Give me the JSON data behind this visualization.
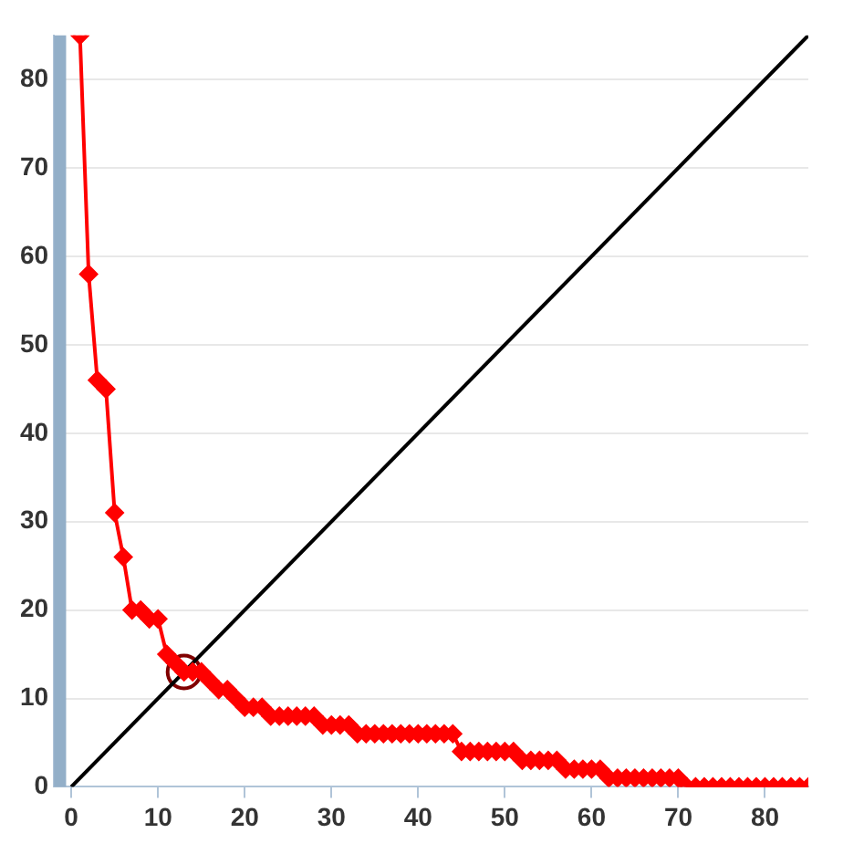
{
  "chart_data": {
    "type": "line",
    "xlim": [
      -2,
      85
    ],
    "ylim": [
      0,
      85
    ],
    "xticks": [
      0,
      10,
      20,
      30,
      40,
      50,
      60,
      70,
      80
    ],
    "yticks": [
      0,
      10,
      20,
      30,
      40,
      50,
      60,
      70,
      80
    ],
    "grid": "y",
    "legend": false,
    "marker": "diamond",
    "bands": [
      {
        "axis": "x",
        "from": -2,
        "to": -0.6,
        "color": "#93afc8"
      }
    ],
    "series": [
      {
        "color": "#ff0000",
        "x": [
          1,
          2,
          3,
          4,
          5,
          6,
          7,
          8,
          9,
          10,
          11,
          12,
          13,
          14,
          15,
          16,
          17,
          18,
          19,
          20,
          21,
          22,
          23,
          24,
          25,
          26,
          27,
          28,
          29,
          30,
          31,
          32,
          33,
          34,
          35,
          36,
          37,
          38,
          39,
          40,
          41,
          42,
          43,
          44,
          45,
          46,
          47,
          48,
          49,
          50,
          51,
          52,
          53,
          54,
          55,
          56,
          57,
          58,
          59,
          60,
          61,
          62,
          63,
          64,
          65,
          66,
          67,
          68,
          69,
          70,
          71,
          72,
          73,
          74,
          75,
          76,
          77,
          78,
          79,
          80,
          81,
          82,
          83,
          84,
          85
        ],
        "values": [
          85,
          58,
          46,
          45,
          31,
          26,
          20,
          20,
          19,
          19,
          15,
          14,
          13,
          13,
          13,
          12,
          11,
          11,
          10,
          9,
          9,
          9,
          8,
          8,
          8,
          8,
          8,
          8,
          7,
          7,
          7,
          7,
          6,
          6,
          6,
          6,
          6,
          6,
          6,
          6,
          6,
          6,
          6,
          6,
          4,
          4,
          4,
          4,
          4,
          4,
          4,
          3,
          3,
          3,
          3,
          3,
          2,
          2,
          2,
          2,
          2,
          1,
          1,
          1,
          1,
          1,
          1,
          1,
          1,
          1,
          0,
          0,
          0,
          0,
          0,
          0,
          0,
          0,
          0,
          0,
          0,
          0,
          0,
          0,
          0
        ]
      },
      {
        "color": "#000000",
        "x": [
          0,
          85
        ],
        "values": [
          0,
          85
        ],
        "marker": "none"
      },
      {
        "type": "scatter",
        "color": "#800000",
        "x": [
          13
        ],
        "values": [
          13
        ],
        "marker": "circle"
      }
    ]
  }
}
